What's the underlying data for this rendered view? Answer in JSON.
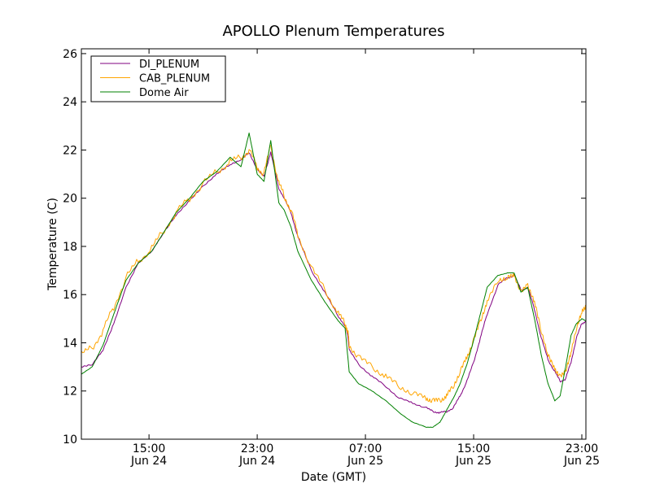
{
  "chart_data": {
    "type": "line",
    "title": "APOLLO Plenum Temperatures",
    "xlabel": "Date (GMT)",
    "ylabel": "Temperature (C)",
    "x_unit": "hours since Jun 24 10:00 GMT",
    "xlim": [
      0,
      37.3
    ],
    "ylim": [
      10,
      26.2
    ],
    "yticks": [
      10,
      12,
      14,
      16,
      18,
      20,
      22,
      24,
      26
    ],
    "xticks": [
      {
        "x": 5,
        "time": "15:00",
        "date": "Jun 24"
      },
      {
        "x": 13,
        "time": "23:00",
        "date": "Jun 24"
      },
      {
        "x": 21,
        "time": "07:00",
        "date": "Jun 25"
      },
      {
        "x": 29,
        "time": "15:00",
        "date": "Jun 25"
      },
      {
        "x": 37,
        "time": "23:00",
        "date": "Jun 25"
      }
    ],
    "legend_position": "top-left",
    "series": [
      {
        "name": "DI_PLENUM",
        "color": "#800080",
        "x": [
          0,
          0.8,
          1.6,
          2.4,
          3.3,
          4.2,
          5.2,
          6.0,
          7.0,
          8.0,
          9.0,
          10.0,
          11.0,
          11.8,
          12.4,
          13.0,
          13.5,
          14.0,
          14.6,
          15.0,
          15.5,
          16.0,
          17.0,
          18.0,
          19.0,
          19.5,
          19.7,
          19.8,
          20.5,
          21.5,
          22.5,
          23.5,
          24.5,
          25.5,
          26.0,
          26.5,
          27.0,
          27.5,
          28.0,
          28.5,
          29.0,
          29.5,
          30.0,
          30.8,
          31.5,
          32.0,
          32.5,
          33.0,
          33.5,
          34.0,
          34.5,
          35.0,
          35.4,
          35.8,
          36.2,
          36.6,
          37.0,
          37.3
        ],
        "y": [
          13.0,
          13.1,
          13.7,
          14.8,
          16.3,
          17.3,
          17.8,
          18.5,
          19.3,
          19.9,
          20.5,
          21.0,
          21.4,
          21.6,
          21.9,
          21.2,
          20.9,
          21.9,
          20.4,
          20.0,
          19.4,
          18.4,
          17.0,
          16.1,
          15.1,
          14.7,
          14.3,
          13.7,
          13.1,
          12.6,
          12.2,
          11.7,
          11.5,
          11.3,
          11.15,
          11.1,
          11.15,
          11.3,
          11.8,
          12.4,
          13.2,
          14.2,
          15.2,
          16.4,
          16.7,
          16.8,
          16.2,
          16.3,
          15.4,
          14.2,
          13.3,
          12.8,
          12.4,
          12.5,
          13.2,
          14.2,
          14.8,
          14.9
        ]
      },
      {
        "name": "CAB_PLENUM",
        "color": "#ffa500",
        "x": [
          0,
          0.8,
          1.6,
          2.4,
          3.3,
          4.2,
          5.2,
          6.0,
          7.0,
          8.0,
          9.0,
          10.0,
          11.0,
          11.8,
          12.4,
          13.0,
          13.5,
          14.0,
          14.6,
          15.0,
          15.5,
          16.0,
          17.0,
          18.0,
          19.0,
          19.5,
          19.7,
          19.8,
          20.5,
          21.5,
          22.5,
          23.5,
          24.5,
          25.5,
          26.0,
          26.5,
          27.0,
          27.5,
          28.0,
          28.5,
          29.0,
          29.5,
          30.0,
          30.8,
          31.5,
          32.0,
          32.5,
          33.0,
          33.5,
          34.0,
          34.5,
          35.0,
          35.4,
          35.8,
          36.2,
          36.6,
          37.0,
          37.3
        ],
        "y": [
          13.5,
          13.8,
          14.5,
          15.5,
          16.7,
          17.4,
          17.9,
          18.6,
          19.4,
          20.0,
          20.6,
          21.1,
          21.5,
          21.7,
          22.0,
          21.3,
          21.0,
          22.2,
          20.6,
          20.1,
          19.5,
          18.5,
          17.1,
          16.2,
          15.2,
          14.8,
          14.5,
          13.9,
          13.4,
          13.0,
          12.6,
          12.2,
          11.9,
          11.7,
          11.6,
          11.6,
          11.8,
          12.2,
          12.8,
          13.4,
          14.1,
          14.9,
          15.7,
          16.6,
          16.7,
          16.8,
          16.1,
          16.4,
          15.7,
          14.5,
          13.5,
          12.9,
          12.6,
          12.8,
          13.6,
          14.6,
          15.3,
          15.5
        ]
      },
      {
        "name": "Dome Air",
        "color": "#008000",
        "x": [
          0,
          0.8,
          1.6,
          2.4,
          3.3,
          4.2,
          5.2,
          6.0,
          7.0,
          8.0,
          9.0,
          10.0,
          11.0,
          11.8,
          12.4,
          13.0,
          13.5,
          14.0,
          14.6,
          15.0,
          15.5,
          16.0,
          17.0,
          18.0,
          19.0,
          19.5,
          19.7,
          19.8,
          20.5,
          21.5,
          22.5,
          23.5,
          24.5,
          25.5,
          26.0,
          26.5,
          27.0,
          27.5,
          28.0,
          28.5,
          29.0,
          29.5,
          30.0,
          30.8,
          31.5,
          32.0,
          32.5,
          33.0,
          33.5,
          34.0,
          34.5,
          35.0,
          35.4,
          35.8,
          36.2,
          36.6,
          37.0,
          37.3
        ],
        "y": [
          12.7,
          13.0,
          13.9,
          15.2,
          16.6,
          17.3,
          17.8,
          18.5,
          19.4,
          20.0,
          20.7,
          21.1,
          21.7,
          21.3,
          22.7,
          21.0,
          20.7,
          22.4,
          19.8,
          19.5,
          18.8,
          17.8,
          16.6,
          15.7,
          14.9,
          14.6,
          13.4,
          12.8,
          12.3,
          12.0,
          11.6,
          11.1,
          10.7,
          10.5,
          10.5,
          10.7,
          11.2,
          11.7,
          12.3,
          13.1,
          14.1,
          15.2,
          16.3,
          16.8,
          16.9,
          16.9,
          16.1,
          16.3,
          15.0,
          13.5,
          12.3,
          11.6,
          11.8,
          13.0,
          14.3,
          14.8,
          15.0,
          14.9
        ]
      }
    ]
  }
}
